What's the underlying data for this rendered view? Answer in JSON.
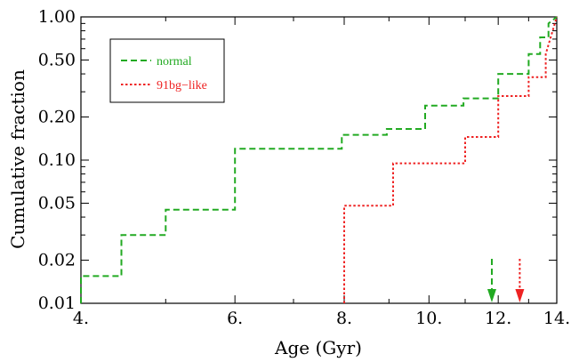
{
  "chart_data": {
    "type": "line",
    "title": "",
    "xlabel": "Age (Gyr)",
    "ylabel": "Cumulative  fraction",
    "xscale": "log",
    "yscale": "log",
    "xlim": [
      4.0,
      14.0
    ],
    "ylim": [
      0.01,
      1.0
    ],
    "xticks": [
      4,
      6,
      8,
      10,
      12,
      14
    ],
    "xtick_labels": [
      "4.",
      "6.",
      "8.",
      "10.",
      "12.",
      "14."
    ],
    "yticks": [
      0.01,
      0.02,
      0.05,
      0.1,
      0.2,
      0.5,
      1.0
    ],
    "ytick_labels": [
      "0.01",
      "0.02",
      "0.05",
      "0.10",
      "0.20",
      "0.50",
      "1.00"
    ],
    "grid": false,
    "legend": {
      "placement": "top-left",
      "entries": [
        {
          "label": "normal",
          "color": "#22aa22",
          "style": "dashed"
        },
        {
          "label": "91bg−like",
          "color": "#ee2222",
          "style": "dotted"
        }
      ]
    },
    "series": [
      {
        "name": "normal",
        "color": "#22aa22",
        "style": "dashed",
        "x": [
          4.0,
          4.0,
          4.45,
          4.45,
          5.0,
          5.0,
          6.0,
          6.0,
          7.95,
          7.95,
          8.95,
          8.95,
          9.9,
          9.9,
          10.95,
          10.95,
          12.0,
          12.0,
          13.0,
          13.0,
          13.4,
          13.4,
          13.7,
          13.7,
          14.0
        ],
        "y": [
          0.01,
          0.0155,
          0.0155,
          0.03,
          0.03,
          0.045,
          0.045,
          0.12,
          0.12,
          0.15,
          0.15,
          0.165,
          0.165,
          0.24,
          0.24,
          0.27,
          0.27,
          0.4,
          0.4,
          0.55,
          0.55,
          0.72,
          0.72,
          0.9,
          1.0
        ]
      },
      {
        "name": "91bg−like",
        "color": "#ee2222",
        "style": "dotted",
        "x": [
          8.0,
          8.0,
          9.1,
          9.1,
          11.0,
          11.0,
          12.0,
          12.0,
          13.0,
          13.0,
          13.6,
          13.6,
          14.0
        ],
        "y": [
          0.01,
          0.048,
          0.048,
          0.095,
          0.095,
          0.145,
          0.145,
          0.28,
          0.28,
          0.38,
          0.38,
          0.55,
          1.0
        ]
      }
    ],
    "markers": [
      {
        "x": 11.8,
        "color": "#22aa22"
      },
      {
        "x": 12.7,
        "color": "#ee2222"
      }
    ]
  }
}
